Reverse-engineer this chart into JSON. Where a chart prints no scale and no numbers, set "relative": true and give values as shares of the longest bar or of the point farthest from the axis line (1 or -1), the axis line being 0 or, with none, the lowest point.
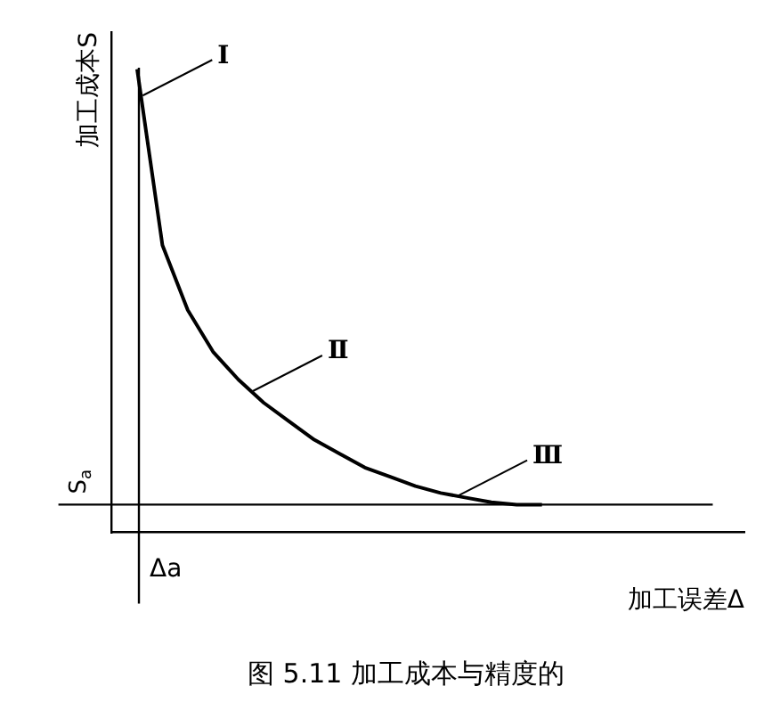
{
  "chart_data": {
    "type": "line",
    "title": "图 5.11 加工成本与精度的",
    "xlabel": "加工误差Δ",
    "ylabel": "加工成本S",
    "relative": true,
    "legend": false,
    "marker": "none",
    "line_style": "solid",
    "categories": [
      null,
      null,
      null,
      null,
      null,
      null,
      null,
      null,
      null,
      null,
      null,
      null,
      null,
      null,
      null,
      null,
      null,
      null,
      null,
      null,
      null,
      null,
      null,
      null,
      null,
      null
    ],
    "series": [
      {
        "color": "#000000",
        "values": [
          null,
          1,
          0.62,
          0.48,
          0.39,
          0.33,
          0.28,
          0.24,
          0.2,
          0.17,
          0.14,
          0.12,
          0.1,
          0.085,
          0.075,
          0.065,
          0.06,
          0.06,
          null,
          null,
          null,
          null,
          null,
          null,
          null,
          null
        ]
      }
    ],
    "annotations": [
      "Ⅰ",
      "Ⅱ",
      "Ⅲ",
      "S$_{a}$",
      "Δa"
    ]
  }
}
